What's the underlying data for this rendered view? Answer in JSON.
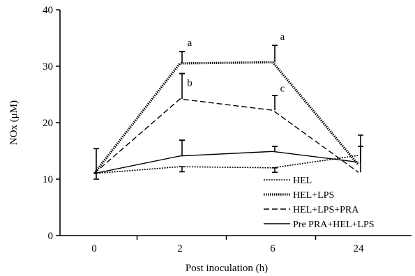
{
  "chart_data": {
    "type": "line",
    "title": "",
    "xlabel": "Post inoculation (h)",
    "ylabel": "NOx (μM)",
    "categories": [
      "0",
      "2",
      "6",
      "24"
    ],
    "ylim": [
      0,
      40
    ],
    "yticks": [
      0,
      10,
      20,
      30,
      40
    ],
    "grid": false,
    "legend_position": "bottom-right",
    "series": [
      {
        "name": "HEL",
        "style": "dotted-fine",
        "values": [
          11.0,
          12.2,
          12.0,
          14.2
        ],
        "error_upper": [
          11.0,
          12.2,
          12.0,
          14.2
        ],
        "error_lower": [
          11.0,
          11.3,
          11.2,
          14.2
        ]
      },
      {
        "name": "HEL+LPS",
        "style": "dotted",
        "values": [
          11.0,
          30.5,
          30.7,
          12.5
        ],
        "error_upper": [
          11.0,
          32.6,
          33.7,
          12.5
        ],
        "error_lower": [
          11.0,
          30.5,
          30.7,
          12.5
        ]
      },
      {
        "name": "HEL+LPS+PRA",
        "style": "dashed",
        "values": [
          11.0,
          24.2,
          22.2,
          11.2
        ],
        "error_upper": [
          11.0,
          28.7,
          24.8,
          15.8
        ],
        "error_lower": [
          11.0,
          24.2,
          22.2,
          11.2
        ]
      },
      {
        "name": "Pre PRA+HEL+LPS",
        "style": "solid",
        "values": [
          11.0,
          14.1,
          14.9,
          13.0
        ],
        "error_upper": [
          15.4,
          16.9,
          15.8,
          17.8
        ],
        "error_lower": [
          10.0,
          14.1,
          14.9,
          13.0
        ]
      }
    ],
    "annotations": [
      {
        "text": "a",
        "x": "2",
        "y": 33.6
      },
      {
        "text": "a",
        "x": "6",
        "y": 34.7
      },
      {
        "text": "b",
        "x": "2",
        "y": 26.5
      },
      {
        "text": "c",
        "x": "6",
        "y": 25.5
      }
    ]
  }
}
